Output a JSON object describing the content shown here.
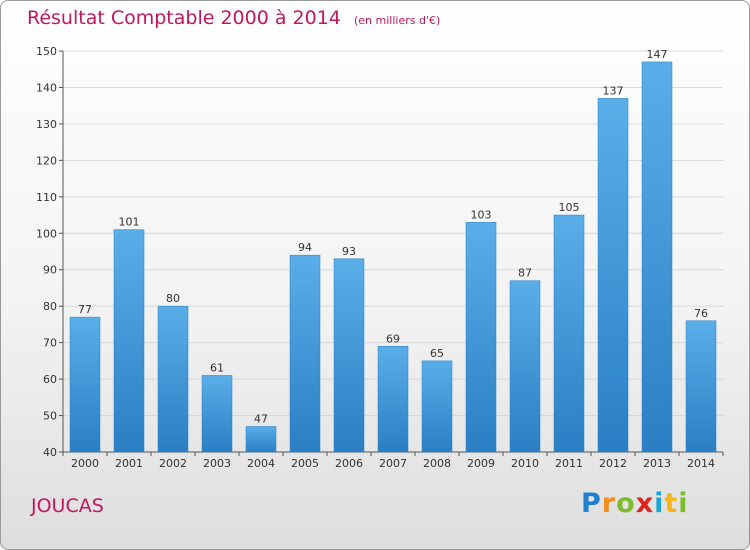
{
  "header": {
    "title": "Résultat Comptable 2000 à 2014",
    "subtitle": "(en milliers d'€)"
  },
  "footer": {
    "commune": "JOUCAS",
    "logo_text": "Proxiti"
  },
  "colors": {
    "title": "#c2185b",
    "bar_top": "#5aaee8",
    "bar_bottom": "#2a7fc4",
    "grid": "#d9d9d9"
  },
  "chart_data": {
    "type": "bar",
    "title": "Résultat Comptable 2000 à 2014",
    "subtitle": "(en milliers d'€)",
    "categories": [
      "2000",
      "2001",
      "2002",
      "2003",
      "2004",
      "2005",
      "2006",
      "2007",
      "2008",
      "2009",
      "2010",
      "2011",
      "2012",
      "2013",
      "2014"
    ],
    "values": [
      77,
      101,
      80,
      61,
      47,
      94,
      93,
      69,
      65,
      103,
      87,
      105,
      137,
      147,
      76
    ],
    "ylim": [
      40,
      150
    ],
    "yticks": [
      40,
      50,
      60,
      70,
      80,
      90,
      100,
      110,
      120,
      130,
      140,
      150
    ],
    "grid": true,
    "xlabel": "",
    "ylabel": ""
  }
}
